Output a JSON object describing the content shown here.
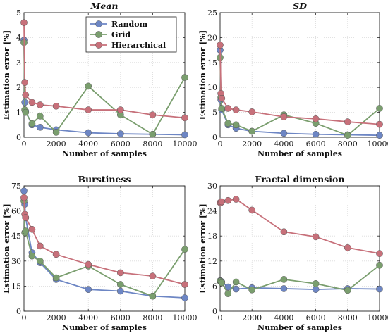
{
  "chart_data": [
    {
      "type": "line",
      "title": "Mean",
      "title_italic": true,
      "xlabel": "Number of samples",
      "ylabel": "Estimation error [%]",
      "xlim": [
        0,
        10000
      ],
      "ylim": [
        0,
        5
      ],
      "xticks": [
        0,
        2000,
        4000,
        6000,
        8000,
        10000
      ],
      "yticks": [
        0,
        1,
        2,
        3,
        4,
        5
      ],
      "grid": true,
      "legend": "top-right",
      "series": [
        {
          "name": "Random",
          "color": "#6d86c4",
          "x": [
            0,
            50,
            100,
            500,
            1000,
            2000,
            4000,
            6000,
            8000,
            10000
          ],
          "y": [
            3.9,
            1.4,
            1.05,
            0.5,
            0.4,
            0.3,
            0.18,
            0.14,
            0.12,
            0.1
          ]
        },
        {
          "name": "Grid",
          "color": "#7a9e6e",
          "x": [
            0,
            50,
            100,
            500,
            1000,
            2000,
            4000,
            6000,
            8000,
            10000
          ],
          "y": [
            3.8,
            1.1,
            1.0,
            0.55,
            0.85,
            0.2,
            2.05,
            0.9,
            0.12,
            2.4
          ]
        },
        {
          "name": "Hierarchical",
          "color": "#c7707a",
          "x": [
            0,
            50,
            100,
            500,
            1000,
            2000,
            4000,
            6000,
            8000,
            10000
          ],
          "y": [
            4.6,
            2.2,
            1.7,
            1.4,
            1.3,
            1.25,
            1.1,
            1.1,
            0.9,
            0.78
          ]
        }
      ]
    },
    {
      "type": "line",
      "title": "SD",
      "title_italic": true,
      "xlabel": "Number of samples",
      "ylabel": "Estimation error [%]",
      "xlim": [
        0,
        10000
      ],
      "ylim": [
        0,
        25
      ],
      "xticks": [
        0,
        2000,
        4000,
        6000,
        8000,
        10000
      ],
      "yticks": [
        0,
        5,
        10,
        15,
        20,
        25
      ],
      "grid": true,
      "series": [
        {
          "name": "Random",
          "color": "#6d86c4",
          "x": [
            0,
            50,
            100,
            500,
            1000,
            2000,
            4000,
            6000,
            8000,
            10000
          ],
          "y": [
            17.5,
            7.5,
            5.5,
            2.5,
            1.8,
            1.2,
            0.8,
            0.6,
            0.5,
            0.4
          ]
        },
        {
          "name": "Grid",
          "color": "#7a9e6e",
          "x": [
            0,
            50,
            100,
            500,
            1000,
            2000,
            4000,
            6000,
            8000,
            10000
          ],
          "y": [
            16,
            8,
            5.8,
            2.8,
            2.5,
            1.2,
            4.5,
            2.8,
            0.4,
            5.8
          ]
        },
        {
          "name": "Hierarchical",
          "color": "#c7707a",
          "x": [
            0,
            50,
            100,
            500,
            1000,
            2000,
            4000,
            6000,
            8000,
            10000
          ],
          "y": [
            18.5,
            8.8,
            7.8,
            5.8,
            5.5,
            5.1,
            4.1,
            3.7,
            3.1,
            2.6
          ]
        }
      ]
    },
    {
      "type": "line",
      "title": "Burstiness",
      "title_italic": false,
      "xlabel": "Number of samples",
      "ylabel": "Estimation error [%]",
      "xlim": [
        0,
        10000
      ],
      "ylim": [
        0,
        75
      ],
      "xticks": [
        0,
        2000,
        4000,
        6000,
        8000,
        10000
      ],
      "yticks": [
        0,
        15,
        30,
        45,
        60,
        75
      ],
      "grid": true,
      "series": [
        {
          "name": "Random",
          "color": "#6d86c4",
          "x": [
            0,
            50,
            100,
            500,
            1000,
            2000,
            4000,
            6000,
            8000,
            10000
          ],
          "y": [
            72,
            64,
            56,
            35,
            29,
            19,
            13,
            12,
            9,
            8
          ]
        },
        {
          "name": "Grid",
          "color": "#7a9e6e",
          "x": [
            0,
            50,
            100,
            500,
            1000,
            2000,
            4000,
            6000,
            8000,
            10000
          ],
          "y": [
            66,
            47,
            48,
            33,
            30,
            20,
            27,
            16,
            9,
            37
          ]
        },
        {
          "name": "Hierarchical",
          "color": "#c7707a",
          "x": [
            0,
            50,
            100,
            500,
            1000,
            2000,
            4000,
            6000,
            8000,
            10000
          ],
          "y": [
            68,
            58,
            56,
            49,
            39,
            34,
            28,
            23,
            21,
            16
          ]
        }
      ]
    },
    {
      "type": "line",
      "title": "Fractal dimension",
      "title_italic": false,
      "xlabel": "Number of samples",
      "ylabel": "Estimation error [%]",
      "xlim": [
        0,
        10000
      ],
      "ylim": [
        0,
        30
      ],
      "xticks": [
        0,
        2000,
        4000,
        6000,
        8000,
        10000
      ],
      "yticks": [
        0,
        6,
        12,
        18,
        24,
        30
      ],
      "grid": true,
      "series": [
        {
          "name": "Random",
          "color": "#6d86c4",
          "x": [
            0,
            50,
            100,
            500,
            1000,
            2000,
            4000,
            6000,
            8000,
            10000
          ],
          "y": [
            7.3,
            7.2,
            7.0,
            5.8,
            5.3,
            5.6,
            5.4,
            5.2,
            5.4,
            5.3
          ]
        },
        {
          "name": "Grid",
          "color": "#7a9e6e",
          "x": [
            0,
            50,
            100,
            500,
            1000,
            2000,
            4000,
            6000,
            8000,
            10000
          ],
          "y": [
            7.2,
            7.0,
            6.8,
            4.2,
            7.0,
            5.1,
            7.6,
            6.6,
            5.0,
            11.0
          ]
        },
        {
          "name": "Hierarchical",
          "color": "#c7707a",
          "x": [
            0,
            50,
            100,
            500,
            1000,
            2000,
            4000,
            6000,
            8000,
            10000
          ],
          "y": [
            26.0,
            26.0,
            26.2,
            26.5,
            26.8,
            24.2,
            19.0,
            17.8,
            15.2,
            13.8
          ]
        }
      ]
    }
  ]
}
